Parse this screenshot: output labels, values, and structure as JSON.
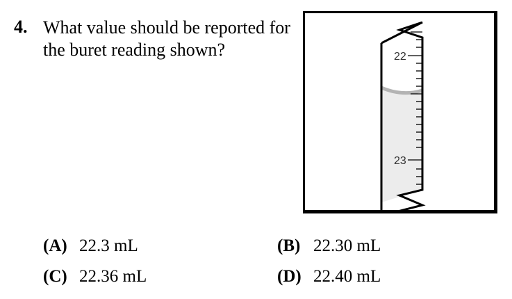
{
  "question": {
    "number": "4.",
    "text": "What value should be reported for the buret reading shown?"
  },
  "buret": {
    "scale_labels": [
      "22",
      "23"
    ],
    "meniscus_reading_ml": 22.36
  },
  "choices": [
    {
      "letter": "(A)",
      "text": "22.3 mL"
    },
    {
      "letter": "(B)",
      "text": "22.30 mL"
    },
    {
      "letter": "(C)",
      "text": "22.36 mL"
    },
    {
      "letter": "(D)",
      "text": "22.40 mL"
    }
  ]
}
